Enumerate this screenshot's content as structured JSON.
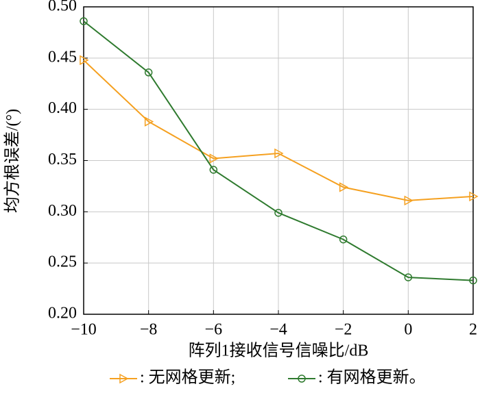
{
  "chart_data": {
    "type": "line",
    "x_label": "阵列1接收信号信噪比/dB",
    "y_label": "均方根误差/(°)",
    "x": [
      -10,
      -8,
      -6,
      -4,
      -2,
      0,
      2
    ],
    "series": [
      {
        "name": ": 无网格更新;",
        "color": "#f5a01f",
        "marker": "triangle-right",
        "values": [
          0.448,
          0.388,
          0.352,
          0.357,
          0.324,
          0.311,
          0.315
        ]
      },
      {
        "name": ": 有网格更新。",
        "color": "#2e7a2e",
        "marker": "circle",
        "values": [
          0.486,
          0.436,
          0.341,
          0.299,
          0.273,
          0.236,
          0.233
        ]
      }
    ],
    "xlim": [
      -10,
      2
    ],
    "xticks": [
      {
        "value": -10,
        "label": "−10"
      },
      {
        "value": -8,
        "label": "−8"
      },
      {
        "value": -6,
        "label": "−6"
      },
      {
        "value": -4,
        "label": "−4"
      },
      {
        "value": -2,
        "label": "−2"
      },
      0,
      2
    ],
    "ylim": [
      0.2,
      0.5
    ],
    "yticks": [
      {
        "value": 0.2,
        "label": "0.20"
      },
      {
        "value": 0.25,
        "label": "0.25"
      },
      {
        "value": 0.3,
        "label": "0.30"
      },
      {
        "value": 0.35,
        "label": "0.35"
      },
      {
        "value": 0.4,
        "label": "0.40"
      },
      {
        "value": 0.45,
        "label": "0.45"
      },
      {
        "value": 0.5,
        "label": "0.50"
      }
    ],
    "grid": true
  }
}
